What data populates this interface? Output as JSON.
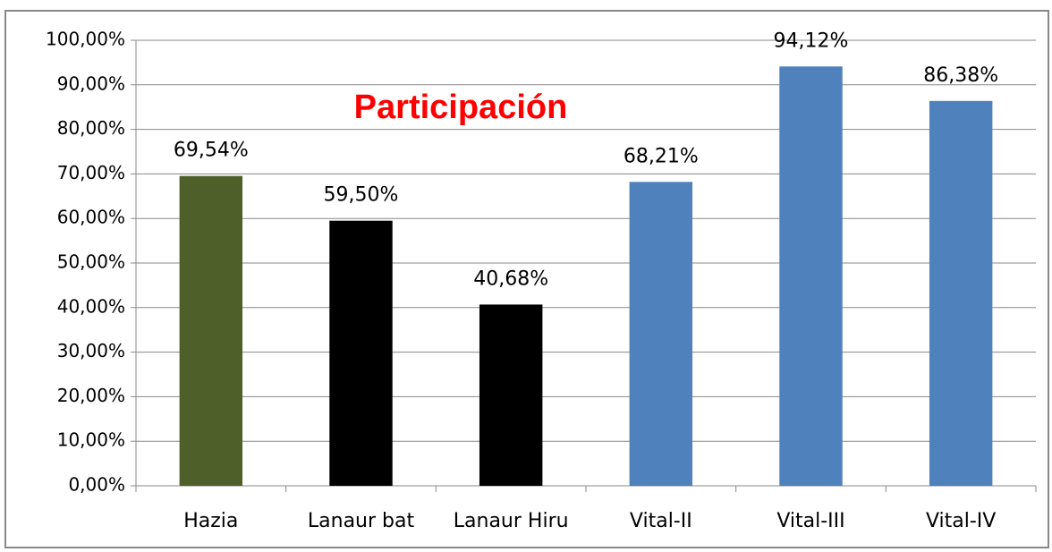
{
  "chart_data": {
    "type": "bar",
    "title": "Participación",
    "title_color": "#ff0000",
    "categories": [
      "Hazia",
      "Lanaur bat",
      "Lanaur Hiru",
      "Vital-II",
      "Vital-III",
      "Vital-IV"
    ],
    "values": [
      69.54,
      59.5,
      40.68,
      68.21,
      94.12,
      86.38
    ],
    "value_labels": [
      "69,54%",
      "59,50%",
      "40,68%",
      "68,21%",
      "94,12%",
      "86,38%"
    ],
    "colors": [
      "#4f5f2a",
      "#000000",
      "#000000",
      "#4f81bd",
      "#4f81bd",
      "#4f81bd"
    ],
    "ylim": [
      0,
      100
    ],
    "yticks": [
      {
        "value": 0,
        "label": "0,00%"
      },
      {
        "value": 10,
        "label": "10,00%"
      },
      {
        "value": 20,
        "label": "20,00%"
      },
      {
        "value": 30,
        "label": "30,00%"
      },
      {
        "value": 40,
        "label": "40,00%"
      },
      {
        "value": 50,
        "label": "50,00%"
      },
      {
        "value": 60,
        "label": "60,00%"
      },
      {
        "value": 70,
        "label": "70,00%"
      },
      {
        "value": 80,
        "label": "80,00%"
      },
      {
        "value": 90,
        "label": "90,00%"
      },
      {
        "value": 100,
        "label": "100,00%"
      }
    ],
    "grid": true
  }
}
